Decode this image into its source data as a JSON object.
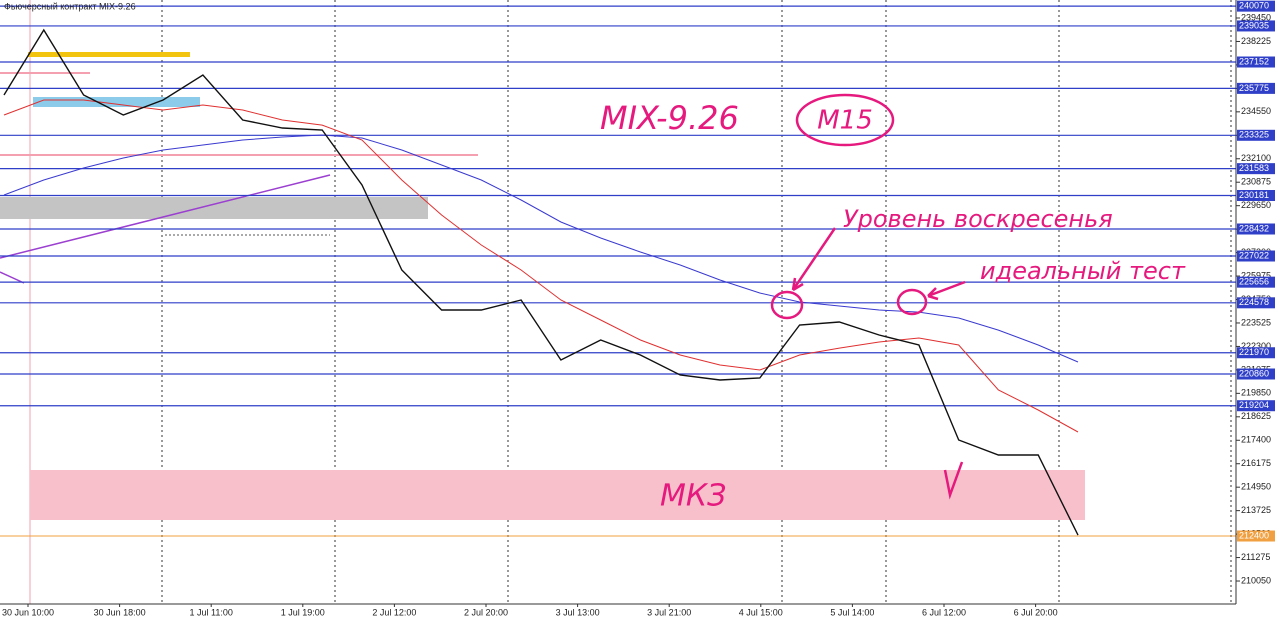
{
  "chart_data": {
    "type": "line",
    "title": "Фьючерсный контракт MIX-9.26",
    "annotations": {
      "ticker": "MIX-9.26",
      "timeframe": "M15",
      "sunday_level": "Уровень воскресенья",
      "ideal_test": "идеальный тест",
      "zone": "МКЗ"
    },
    "x_tick_labels": [
      "30 Jun 10:00",
      "30 Jun 18:00",
      "1 Jul 11:00",
      "1 Jul 19:00",
      "2 Jul 12:00",
      "2 Jul 20:00",
      "3 Jul 13:00",
      "3 Jul 21:00",
      "4 Jul 15:00",
      "5 Jul 14:00",
      "6 Jul 12:00",
      "6 Jul 20:00"
    ],
    "series": [
      {
        "color": "#111111",
        "values": [
          235430,
          238825,
          235430,
          234385,
          235170,
          236475,
          234125,
          233705,
          233600,
          230730,
          226290,
          224200,
          224200,
          224725,
          221590,
          222635,
          221850,
          220810,
          220545,
          220650,
          223420,
          223575,
          222895,
          222375,
          217415,
          216630,
          216630,
          212450
        ]
      },
      {
        "color": "#e03030",
        "values": [
          234385,
          235170,
          235170,
          234905,
          234645,
          234905,
          234645,
          234125,
          233860,
          233080,
          230990,
          229165,
          227595,
          226290,
          224725,
          223680,
          222635,
          221850,
          221330,
          221070,
          221850,
          222215,
          222530,
          222740,
          222375,
          220025,
          218980,
          217830
        ]
      },
      {
        "color": "#3a3ad0",
        "values": [
          230205,
          230990,
          231615,
          232140,
          232555,
          232820,
          233080,
          233235,
          233340,
          233185,
          232555,
          231775,
          230990,
          229945,
          228795,
          227960,
          227230,
          226550,
          225770,
          225090,
          224620,
          224410,
          224200,
          224095,
          223785,
          223155,
          222375,
          221485
        ]
      }
    ],
    "ylim": [
      208850,
      240390
    ],
    "yticks": [
      210050,
      211275,
      212500,
      213725,
      214950,
      216175,
      217400,
      218625,
      219850,
      221075,
      222300,
      223525,
      224750,
      225975,
      227200,
      228425,
      229650,
      230875,
      232100,
      233325,
      234550,
      235775,
      237000,
      238225,
      239450
    ],
    "levels": {
      "color": "#2f3fc8",
      "values": [
        240070,
        239035,
        237152,
        235775,
        233325,
        231583,
        230181,
        228432,
        227022,
        225656,
        224578,
        221970,
        220860,
        219204
      ]
    },
    "support": {
      "color": "#f0a040",
      "value": 212400
    }
  }
}
